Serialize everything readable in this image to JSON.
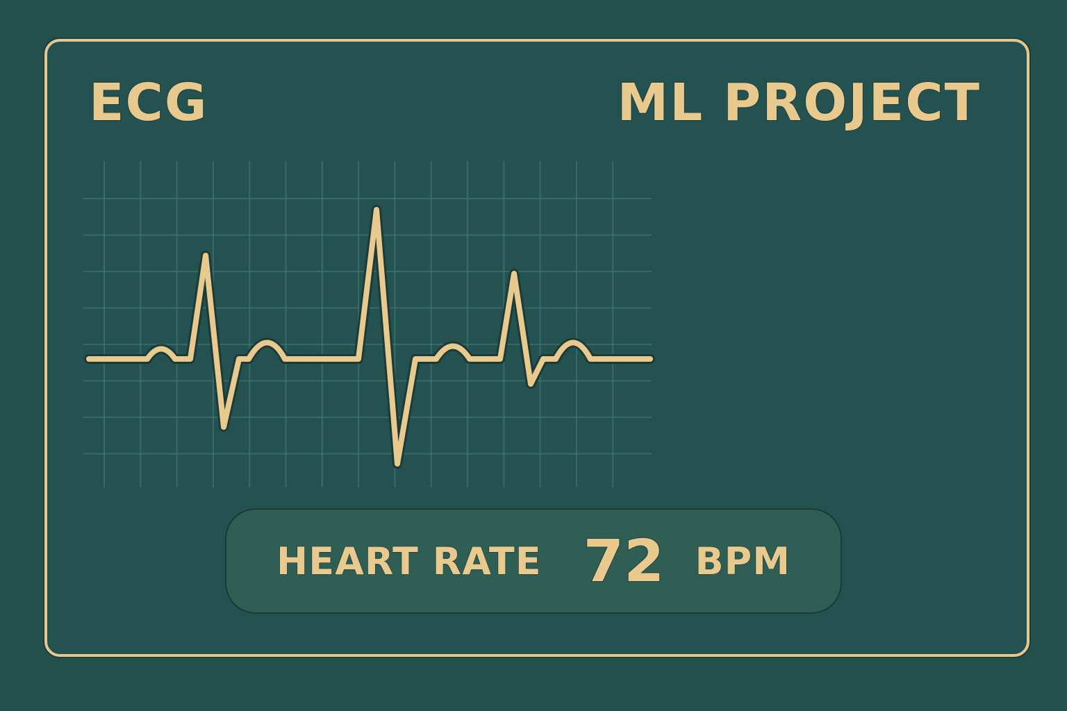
{
  "header": {
    "left_title": "ECG",
    "right_title": "ML PROJECT"
  },
  "monitor": {
    "trace": "ecg-waveform",
    "grid": true
  },
  "readout": {
    "label": "HEART RATE",
    "value": "72",
    "unit": "BPM"
  },
  "colors": {
    "background": "#234f4c",
    "accent": "#e8c98e",
    "panel": "#2f5e55",
    "grid": "#3e7470"
  }
}
